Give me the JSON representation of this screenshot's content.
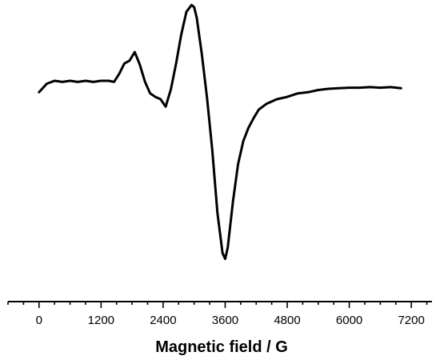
{
  "chart_data": {
    "type": "line",
    "title": "",
    "xlabel": "Magnetic field / G",
    "ylabel": "",
    "xlim": [
      -600,
      7600
    ],
    "ylim": [
      -3.3,
      1.35
    ],
    "x_major_ticks": [
      0,
      1200,
      2400,
      3600,
      4800,
      6000,
      7200
    ],
    "x_tick_labels": [
      "0",
      "1200",
      "2400",
      "3600",
      "4800",
      "6000",
      "7200"
    ],
    "x_minor_step": 300,
    "y_axis_visible": false,
    "grid": false,
    "legend": "none",
    "series": [
      {
        "x": [
          0,
          150,
          300,
          450,
          600,
          750,
          900,
          1050,
          1200,
          1350,
          1450,
          1550,
          1650,
          1750,
          1850,
          1950,
          2050,
          2150,
          2250,
          2350,
          2450,
          2550,
          2650,
          2750,
          2850,
          2950,
          3000,
          3050,
          3150,
          3250,
          3350,
          3450,
          3550,
          3600,
          3650,
          3750,
          3850,
          3950,
          4050,
          4150,
          4250,
          4400,
          4600,
          4800,
          5000,
          5200,
          5400,
          5600,
          5800,
          6000,
          6200,
          6400,
          6600,
          6800,
          7000
        ],
        "y": [
          -0.2,
          -0.05,
          0.0,
          -0.02,
          0.0,
          -0.02,
          0.0,
          -0.02,
          0.0,
          0.0,
          -0.02,
          0.12,
          0.3,
          0.35,
          0.5,
          0.28,
          -0.02,
          -0.22,
          -0.28,
          -0.32,
          -0.45,
          -0.15,
          0.3,
          0.8,
          1.2,
          1.32,
          1.28,
          1.1,
          0.45,
          -0.3,
          -1.2,
          -2.3,
          -3.0,
          -3.1,
          -2.9,
          -2.1,
          -1.45,
          -1.05,
          -0.82,
          -0.65,
          -0.5,
          -0.4,
          -0.32,
          -0.28,
          -0.22,
          -0.2,
          -0.16,
          -0.14,
          -0.13,
          -0.12,
          -0.12,
          -0.11,
          -0.12,
          -0.11,
          -0.13
        ]
      }
    ]
  }
}
